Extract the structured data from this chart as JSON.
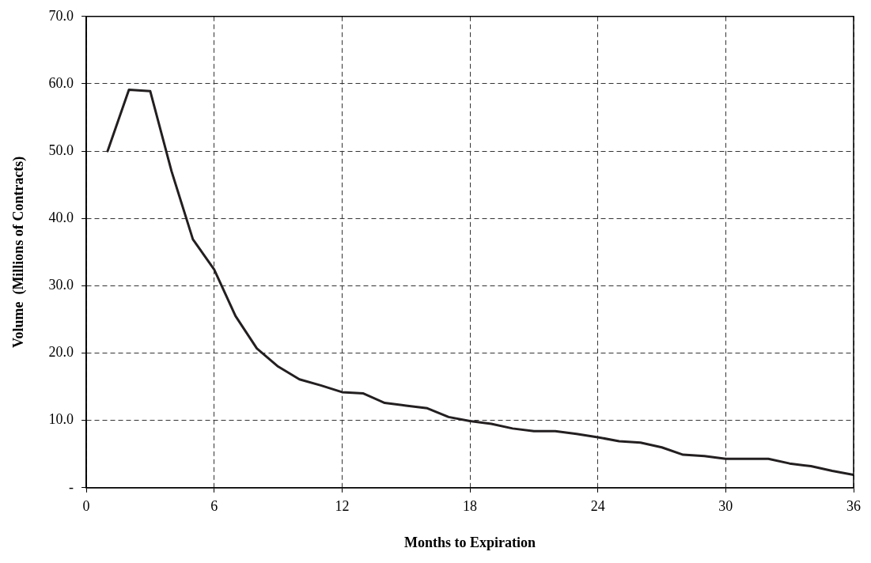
{
  "chart_data": {
    "type": "line",
    "xlabel": "Months to Expiration",
    "ylabel": "Volume  (Millions of Contracts)",
    "x": [
      1,
      2,
      3,
      4,
      5,
      6,
      7,
      8,
      9,
      10,
      11,
      12,
      13,
      14,
      15,
      16,
      17,
      18,
      19,
      20,
      21,
      22,
      23,
      24,
      25,
      26,
      27,
      28,
      29,
      30,
      31,
      32,
      33,
      34,
      35,
      36
    ],
    "series": [
      {
        "color": "#231f20",
        "values": [
          50.0,
          59.1,
          58.9,
          47.0,
          36.9,
          32.4,
          25.5,
          20.7,
          18.0,
          16.1,
          15.2,
          14.2,
          14.0,
          12.6,
          12.2,
          11.8,
          10.5,
          9.9,
          9.5,
          8.8,
          8.4,
          8.4,
          8.0,
          7.5,
          6.9,
          6.7,
          6.0,
          4.9,
          4.7,
          4.3,
          4.3,
          4.3,
          3.6,
          3.2,
          2.5,
          1.9
        ]
      }
    ],
    "xlim": [
      0,
      36
    ],
    "xticks": [
      0,
      6,
      12,
      18,
      24,
      30,
      36
    ],
    "ylim": [
      0,
      70
    ],
    "yticks": [
      {
        "value": 0,
        "label": "-"
      },
      {
        "value": 10,
        "label": "10.0"
      },
      {
        "value": 20,
        "label": "20.0"
      },
      {
        "value": 30,
        "label": "30.0"
      },
      {
        "value": 40,
        "label": "40.0"
      },
      {
        "value": 50,
        "label": "50.0"
      },
      {
        "value": 60,
        "label": "60.0"
      },
      {
        "value": 70,
        "label": "70.0"
      }
    ],
    "grid": true,
    "legend": false,
    "marker": "none",
    "line_style": "solid"
  }
}
